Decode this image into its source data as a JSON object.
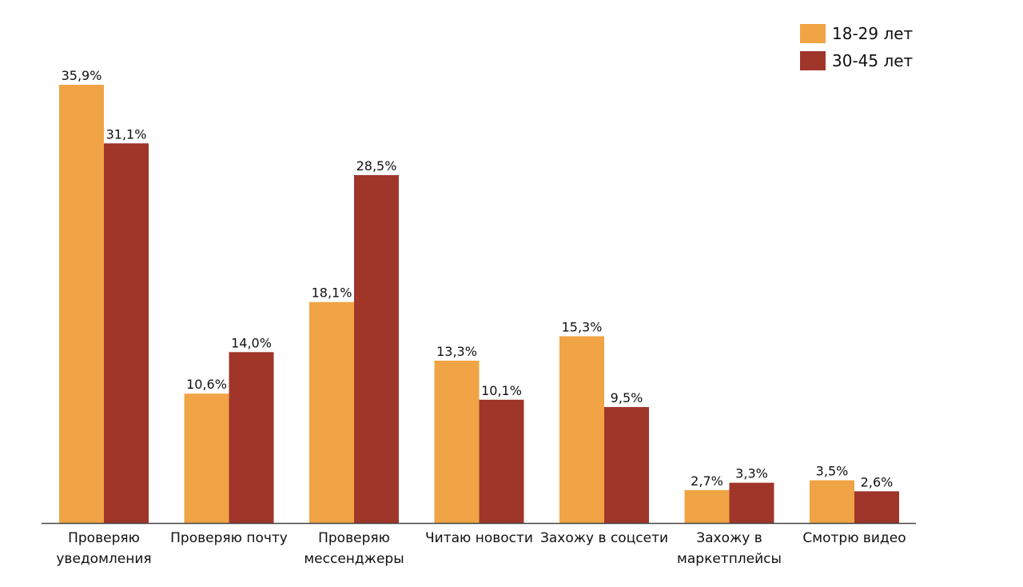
{
  "colors": {
    "series_a": "#F0A445",
    "series_b": "#A0352A",
    "axis": "#444444",
    "text": "#111111"
  },
  "chart_data": {
    "type": "bar",
    "categories": [
      [
        "Проверяю",
        "уведомления"
      ],
      [
        "Проверяю почту"
      ],
      [
        "Проверяю",
        "мессенджеры"
      ],
      [
        "Читаю новости"
      ],
      [
        "Захожу в соцсети"
      ],
      [
        "Захожу в",
        "маркетплейсы"
      ],
      [
        "Смотрю видео"
      ]
    ],
    "series": [
      {
        "name": "18-29 лет",
        "values": [
          35.9,
          10.6,
          18.1,
          13.3,
          15.3,
          2.7,
          3.5
        ],
        "labels": [
          "35,9%",
          "10,6%",
          "18,1%",
          "13,3%",
          "15,3%",
          "2,7%",
          "3,5%"
        ]
      },
      {
        "name": "30-45 лет",
        "values": [
          31.1,
          14.0,
          28.5,
          10.1,
          9.5,
          3.3,
          2.6
        ],
        "labels": [
          "31,1%",
          "14,0%",
          "28,5%",
          "10,1%",
          "9,5%",
          "3,3%",
          "2,6%"
        ]
      }
    ],
    "title": "",
    "xlabel": "",
    "ylabel": "",
    "ylim": [
      0,
      35.9
    ],
    "grid": false,
    "legend": "top-right"
  }
}
